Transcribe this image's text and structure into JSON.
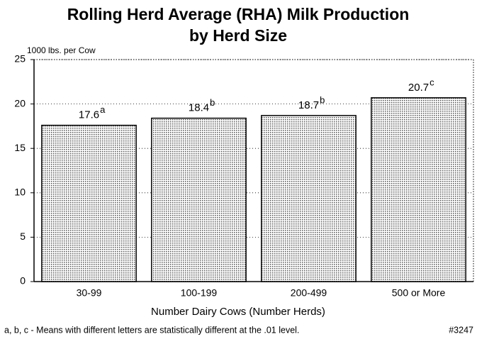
{
  "chart_data": {
    "type": "bar",
    "title": [
      "Rolling Herd Average (RHA) Milk Production",
      "by Herd Size"
    ],
    "y_label": "1000 lbs. per Cow",
    "x_label": "Number Dairy Cows (Number Herds)",
    "categories": [
      "30-99",
      "100-199",
      "200-499",
      "500 or More"
    ],
    "values": [
      17.6,
      18.4,
      18.7,
      20.7
    ],
    "significance_letters": [
      "a",
      "b",
      "b",
      "c"
    ],
    "color": "#555555",
    "ylim": [
      0,
      25
    ],
    "yticks": [
      0,
      5,
      10,
      15,
      20,
      25
    ],
    "grid": true,
    "footnote": "a, b, c - Means with different letters are statistically different at the .01 level.",
    "figure_id": "#3247"
  }
}
